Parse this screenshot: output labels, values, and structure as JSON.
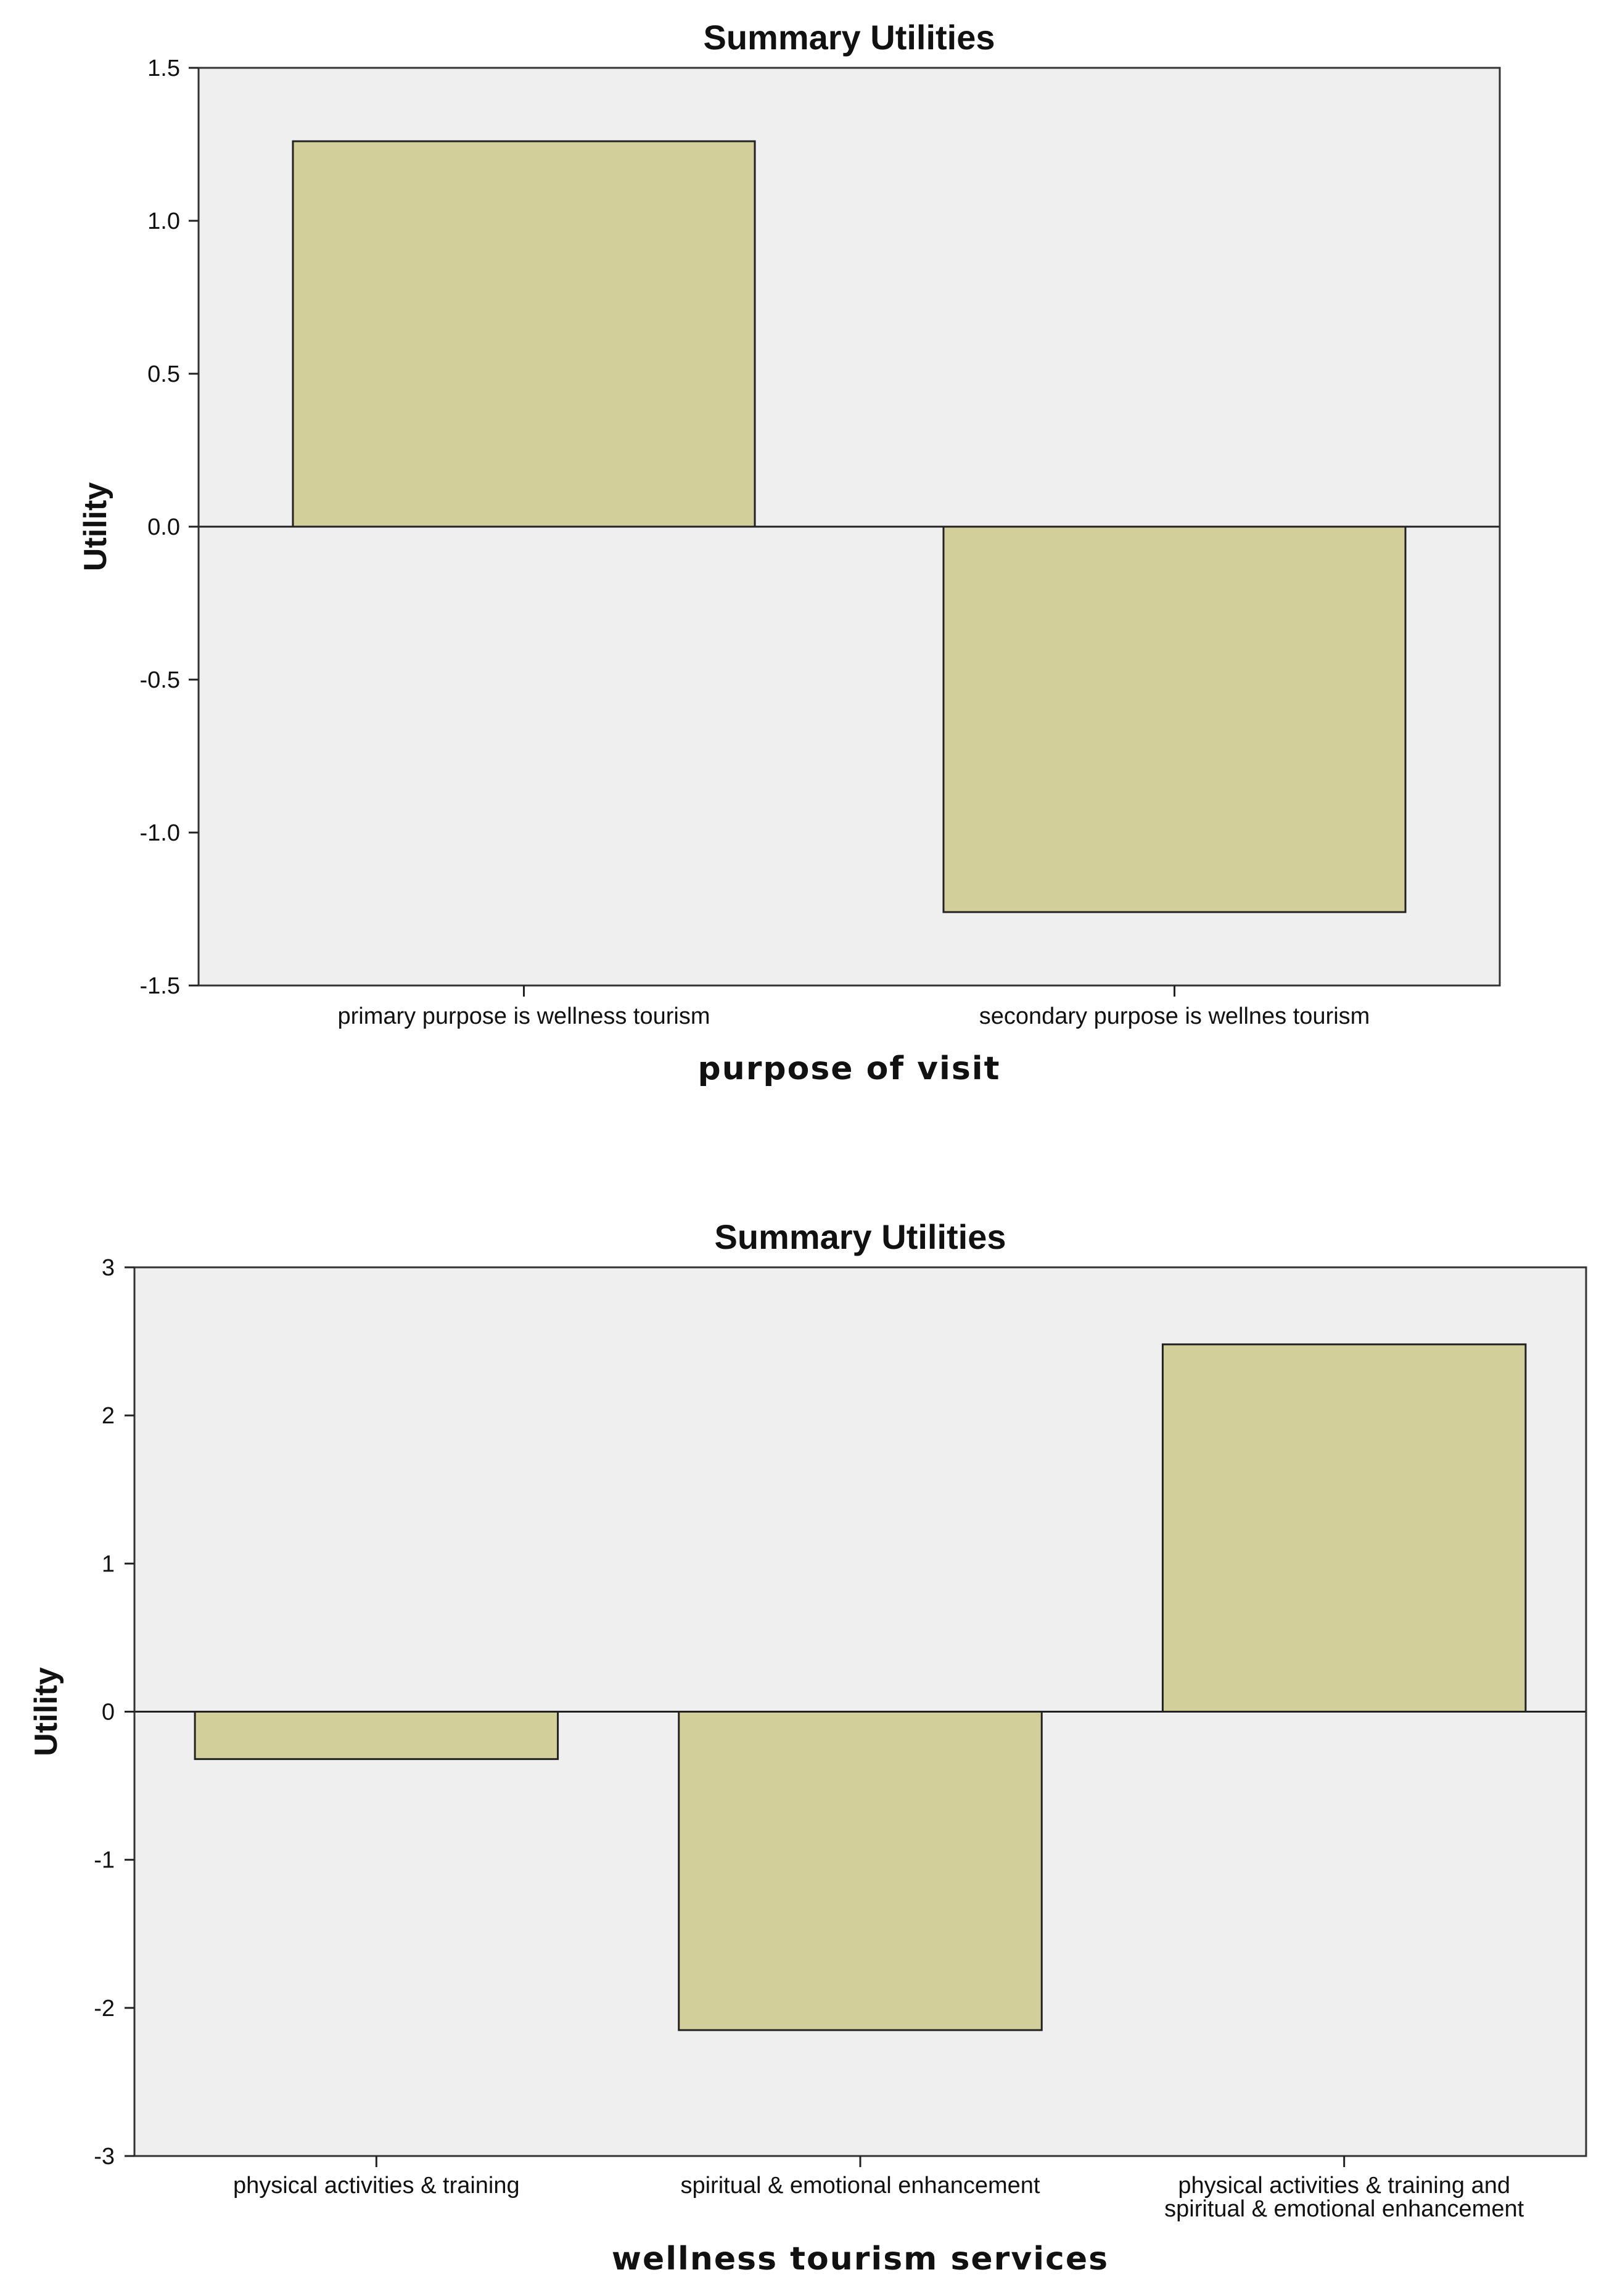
{
  "chart_data": [
    {
      "type": "bar",
      "title": "Summary Utilities",
      "xlabel": "purpose of visit",
      "ylabel": "Utility",
      "ylim": [
        -1.5,
        1.5
      ],
      "yticks": [
        1.5,
        1.0,
        0.5,
        0.0,
        -0.5,
        -1.0,
        -1.5
      ],
      "ytick_labels": [
        "1.5",
        "1.0",
        "0.5",
        "0.0",
        "-0.5",
        "-1.0",
        "-1.5"
      ],
      "categories": [
        [
          "primary purpose is wellness tourism"
        ],
        [
          "secondary purpose is wellnes tourism"
        ]
      ],
      "values": [
        1.26,
        -1.26
      ],
      "bar_color": "#d3cf9b",
      "plot_bg": "#efefef",
      "grid": false
    },
    {
      "type": "bar",
      "title": "Summary Utilities",
      "xlabel": "wellness tourism services",
      "ylabel": "Utility",
      "ylim": [
        -3,
        3
      ],
      "yticks": [
        3,
        2,
        1,
        0,
        -1,
        -2,
        -3
      ],
      "ytick_labels": [
        "3",
        "2",
        "1",
        "0",
        "-1",
        "-2",
        "-3"
      ],
      "categories": [
        [
          "physical activities & training"
        ],
        [
          "spiritual & emotional enhancement"
        ],
        [
          "physical activities & training and",
          "spiritual & emotional enhancement"
        ]
      ],
      "values": [
        -0.32,
        -2.15,
        2.48
      ],
      "bar_color": "#d3cf9b",
      "plot_bg": "#efefef",
      "grid": false
    }
  ]
}
